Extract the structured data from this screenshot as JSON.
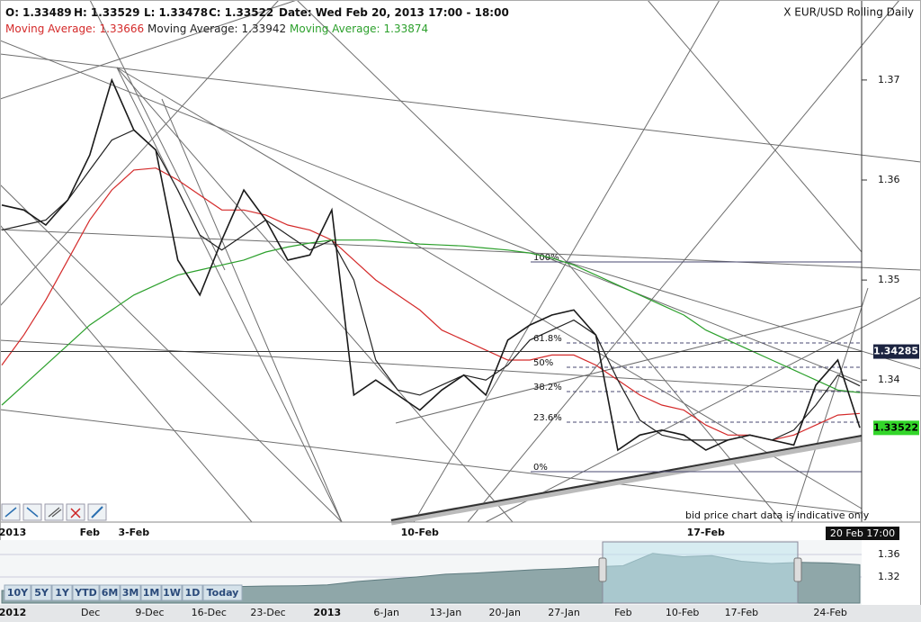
{
  "chart_data": [
    {
      "type": "line",
      "title": "X EUR/USD Rolling Daily",
      "ohlc": [
        {
          "label": "O:",
          "value": 1.33489
        },
        {
          "label": "H:",
          "value": 1.33529
        },
        {
          "label": "L:",
          "value": 1.33478
        },
        {
          "label": "C:",
          "value": 1.33522
        }
      ],
      "date_label": "Date:",
      "date": "Wed Feb 20, 2013 17:00 - 18:00",
      "categories": [
        "2013",
        null,
        null,
        null,
        "Feb",
        null,
        "3-Feb",
        null,
        null,
        null,
        null,
        null,
        null,
        null,
        null,
        null,
        null,
        null,
        null,
        "10-Feb",
        null,
        null,
        null,
        null,
        null,
        null,
        null,
        null,
        null,
        null,
        null,
        null,
        "17-Feb",
        null,
        null,
        null,
        null,
        null,
        null,
        null
      ],
      "last_time": "20 Feb 17:00",
      "price": {
        "name": "Price",
        "color": "#1a1a1a",
        "values": [
          1.3575,
          1.357,
          1.3555,
          1.358,
          1.3625,
          1.37,
          1.365,
          1.363,
          1.352,
          1.3485,
          1.354,
          1.359,
          1.356,
          1.352,
          1.3525,
          1.357,
          1.3385,
          1.34,
          1.3385,
          1.337,
          1.339,
          1.3405,
          1.3385,
          1.344,
          1.3455,
          1.3465,
          1.347,
          1.3445,
          1.333,
          1.3345,
          1.335,
          1.3345,
          1.333,
          1.334,
          1.3345,
          1.334,
          1.3335,
          1.3395,
          1.342,
          1.33522
        ]
      },
      "series": [
        {
          "name": "Moving Average:",
          "color": "#d42a2a",
          "values": [
            1.3415,
            1.3445,
            1.348,
            1.352,
            1.356,
            1.359,
            1.361,
            1.3612,
            1.36,
            1.3585,
            1.357,
            1.357,
            1.3565,
            1.3555,
            1.355,
            1.354,
            1.352,
            1.35,
            1.3485,
            1.347,
            1.345,
            1.344,
            1.343,
            1.342,
            1.342,
            1.3425,
            1.3425,
            1.3415,
            1.34,
            1.3385,
            1.3375,
            1.337,
            1.3355,
            1.3345,
            1.3345,
            1.334,
            1.3345,
            1.3355,
            1.3365,
            1.33666
          ]
        },
        {
          "name": "Moving Average:",
          "color": "#222222",
          "values": [
            1.355,
            1.3555,
            1.356,
            1.358,
            1.361,
            1.364,
            1.365,
            1.363,
            1.359,
            1.3545,
            1.353,
            1.3545,
            1.356,
            1.3545,
            1.353,
            1.354,
            1.35,
            1.342,
            1.339,
            1.3385,
            1.3395,
            1.3405,
            1.34,
            1.3415,
            1.344,
            1.345,
            1.346,
            1.3445,
            1.34,
            1.336,
            1.3345,
            1.334,
            1.334,
            1.334,
            1.3345,
            1.334,
            1.335,
            1.3375,
            1.3405,
            1.33942
          ]
        },
        {
          "name": "Moving Average:",
          "color": "#2ca02c",
          "values": [
            1.3375,
            1.3395,
            1.3415,
            1.3435,
            1.3455,
            1.347,
            1.3485,
            1.3495,
            1.3505,
            1.351,
            1.3515,
            1.352,
            1.3528,
            1.3533,
            1.3537,
            1.354,
            1.354,
            1.354,
            1.3538,
            1.3536,
            1.3535,
            1.3534,
            1.3532,
            1.353,
            1.3527,
            1.3522,
            1.3515,
            1.3505,
            1.3495,
            1.3485,
            1.3475,
            1.3465,
            1.345,
            1.344,
            1.343,
            1.342,
            1.341,
            1.34,
            1.339,
            1.33874
          ]
        }
      ],
      "price_labels": [
        1.34285,
        1.33522
      ],
      "fib_labels": [
        "100%",
        "61.8%",
        "50%",
        "38.2%",
        "23.6%",
        "0%"
      ],
      "note": "bid price chart data is indicative only",
      "ylim": [
        1.3258,
        1.378
      ],
      "yticks": [
        1.34,
        1.35,
        1.36,
        1.37
      ]
    },
    {
      "type": "area",
      "categories": [
        "2012",
        null,
        null,
        "Dec",
        null,
        "9-Dec",
        null,
        "16-Dec",
        null,
        "23-Dec",
        null,
        "2013",
        null,
        "6-Jan",
        null,
        "13-Jan",
        null,
        "20-Jan",
        null,
        "27-Jan",
        null,
        "Feb",
        null,
        "10-Feb",
        null,
        "17-Feb",
        null,
        null,
        "24-Feb",
        null
      ],
      "values": [
        1.296,
        1.2965,
        1.2955,
        1.297,
        1.296,
        1.2975,
        1.2965,
        1.299,
        1.303,
        1.304,
        1.3045,
        1.306,
        1.312,
        1.316,
        1.32,
        1.325,
        1.327,
        1.33,
        1.333,
        1.335,
        1.338,
        1.34,
        1.362,
        1.356,
        1.358,
        1.348,
        1.344,
        1.346,
        1.345,
        1.342
      ],
      "color": "#8fa7a9",
      "ylim": [
        1.2736,
        1.3856
      ],
      "yticks": [
        1.32,
        1.36
      ],
      "range_buttons": [
        "10Y",
        "5Y",
        "1Y",
        "YTD",
        "6M",
        "3M",
        "1M",
        "1W",
        "1D",
        "Today"
      ]
    }
  ]
}
